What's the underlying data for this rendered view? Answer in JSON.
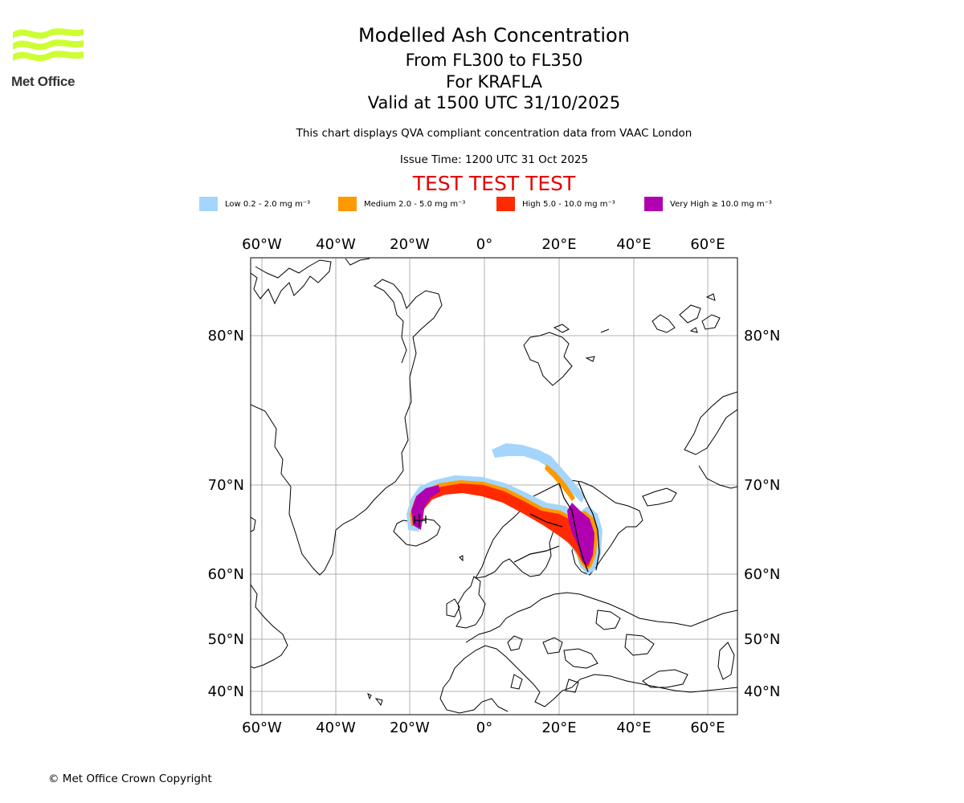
{
  "logo": {
    "text": "Met Office",
    "color": "#ccff33"
  },
  "titles": {
    "main": "Modelled Ash Concentration",
    "levels": "From FL300 to FL350",
    "volcano": "For KRAFLA",
    "valid": "Valid at 1500 UTC 31/10/2025"
  },
  "subtitle": "This chart displays QVA compliant concentration data from VAAC London",
  "issue_time": "Issue Time: 1200 UTC 31 Oct 2025",
  "test_banner": "TEST TEST TEST",
  "legend": [
    {
      "label": "Low 0.2 - 2.0 mg m⁻³",
      "color": "#a5d5fc"
    },
    {
      "label": "Medium 2.0 - 5.0 mg m⁻³",
      "color": "#ff9900"
    },
    {
      "label": "High 5.0 - 10.0 mg m⁻³",
      "color": "#ff2a00"
    },
    {
      "label": "Very High ≥ 10.0 mg m⁻³",
      "color": "#b000b0"
    }
  ],
  "map": {
    "lon_ticks": [
      "60°W",
      "40°W",
      "20°W",
      "0°",
      "20°E",
      "40°E",
      "60°E"
    ],
    "lat_ticks": [
      "80°N",
      "70°N",
      "60°N",
      "50°N",
      "40°N"
    ],
    "volcano_marker": "KRAFLA"
  },
  "copyright": "© Met Office Crown Copyright"
}
